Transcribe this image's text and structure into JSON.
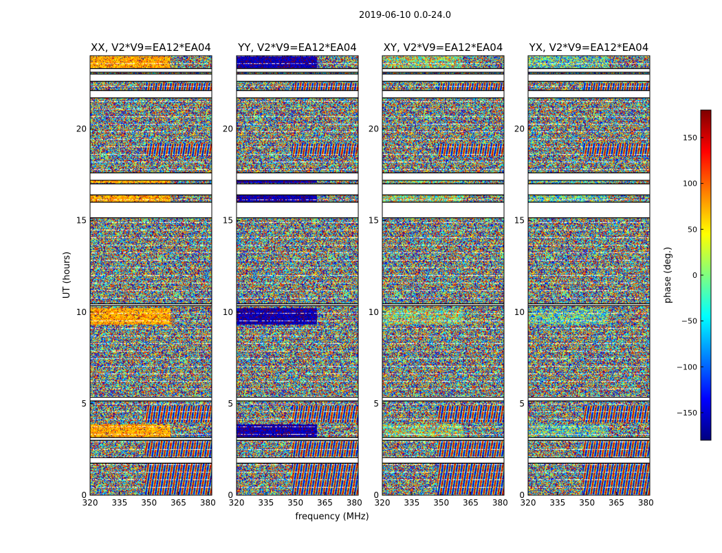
{
  "figure": {
    "suptitle": "2019-06-10 0.0-24.0"
  },
  "chart_data": {
    "type": "heatmap",
    "shared": {
      "xlabel": "frequency (MHz)",
      "ylabel": "UT (hours)",
      "xlim": [
        320,
        382
      ],
      "ylim": [
        0,
        24
      ],
      "xticks": [
        320,
        335,
        350,
        365,
        380
      ],
      "yticks": [
        0,
        5,
        10,
        15,
        20
      ]
    },
    "colorbar": {
      "label": "phase (deg.)",
      "range": [
        -180,
        180
      ],
      "ticks": [
        150,
        100,
        50,
        0,
        -50,
        -100,
        -150
      ],
      "tick_labels": [
        "150",
        "100",
        "50",
        "0",
        "−50",
        "−100",
        "−150"
      ],
      "colormap": "jet",
      "stops": [
        "#00007f",
        "#0000ff",
        "#0080ff",
        "#00ffff",
        "#80ff7f",
        "#ffff00",
        "#ff8000",
        "#ff0000",
        "#7f0000"
      ]
    },
    "panels": [
      {
        "title": "XX, V2*V9=EA12*EA04",
        "bias": 75,
        "strength": 0.8,
        "bias2": 180
      },
      {
        "title": "YY, V2*V9=EA12*EA04",
        "bias": -160,
        "strength": 0.85,
        "bias2": 175
      },
      {
        "title": "XY, V2*V9=EA12*EA04",
        "bias": 20,
        "strength": 0.25,
        "bias2": 0
      },
      {
        "title": "YX, V2*V9=EA12*EA04",
        "bias": -20,
        "strength": 0.25,
        "bias2": 0
      }
    ],
    "blank_hours": [
      [
        1.75,
        2.05
      ],
      [
        3.0,
        3.15
      ],
      [
        5.15,
        5.35
      ],
      [
        10.35,
        10.45
      ],
      [
        15.15,
        16.0
      ],
      [
        16.4,
        17.0
      ],
      [
        17.2,
        17.6
      ],
      [
        21.7,
        22.1
      ],
      [
        22.6,
        23.0
      ],
      [
        23.1,
        23.3
      ]
    ],
    "coherent_hours": [
      [
        3.1,
        3.85
      ],
      [
        9.3,
        10.2
      ],
      [
        23.3,
        24.0
      ],
      [
        16.0,
        16.4
      ],
      [
        17.05,
        17.2
      ]
    ],
    "fringe_hours": [
      [
        0.0,
        1.75
      ],
      [
        2.1,
        2.95
      ],
      [
        4.0,
        4.9
      ],
      [
        18.5,
        19.2
      ],
      [
        21.8,
        22.5
      ]
    ],
    "coherent_cut_mhz": 361
  }
}
